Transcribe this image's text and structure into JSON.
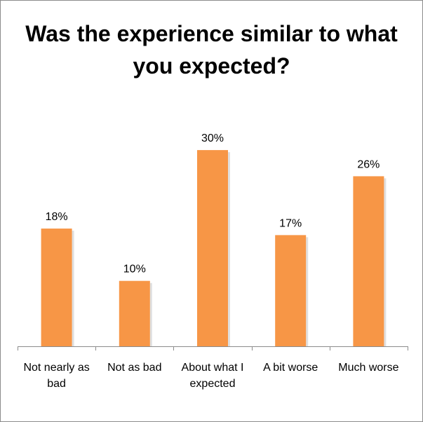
{
  "chart_data": {
    "type": "bar",
    "title": "Was the experience similar to what you expected?",
    "categories": [
      "Not nearly as bad",
      "Not as bad",
      "About what I expected",
      "A bit worse",
      "Much worse"
    ],
    "category_lines": [
      [
        "Not nearly as",
        "bad"
      ],
      [
        "Not as bad"
      ],
      [
        "About what I",
        "expected"
      ],
      [
        "A bit worse"
      ],
      [
        "Much worse"
      ]
    ],
    "values": [
      18,
      10,
      30,
      17,
      26
    ],
    "data_labels": [
      "18%",
      "10%",
      "30%",
      "17%",
      "26%"
    ],
    "xlabel": "",
    "ylabel": "",
    "ylim": [
      0,
      36
    ],
    "grid": false,
    "legend": "none",
    "bar_color": "#F79646",
    "bar_shadow_color": "#C9C9C9",
    "axis_color": "#8C8C8C"
  }
}
